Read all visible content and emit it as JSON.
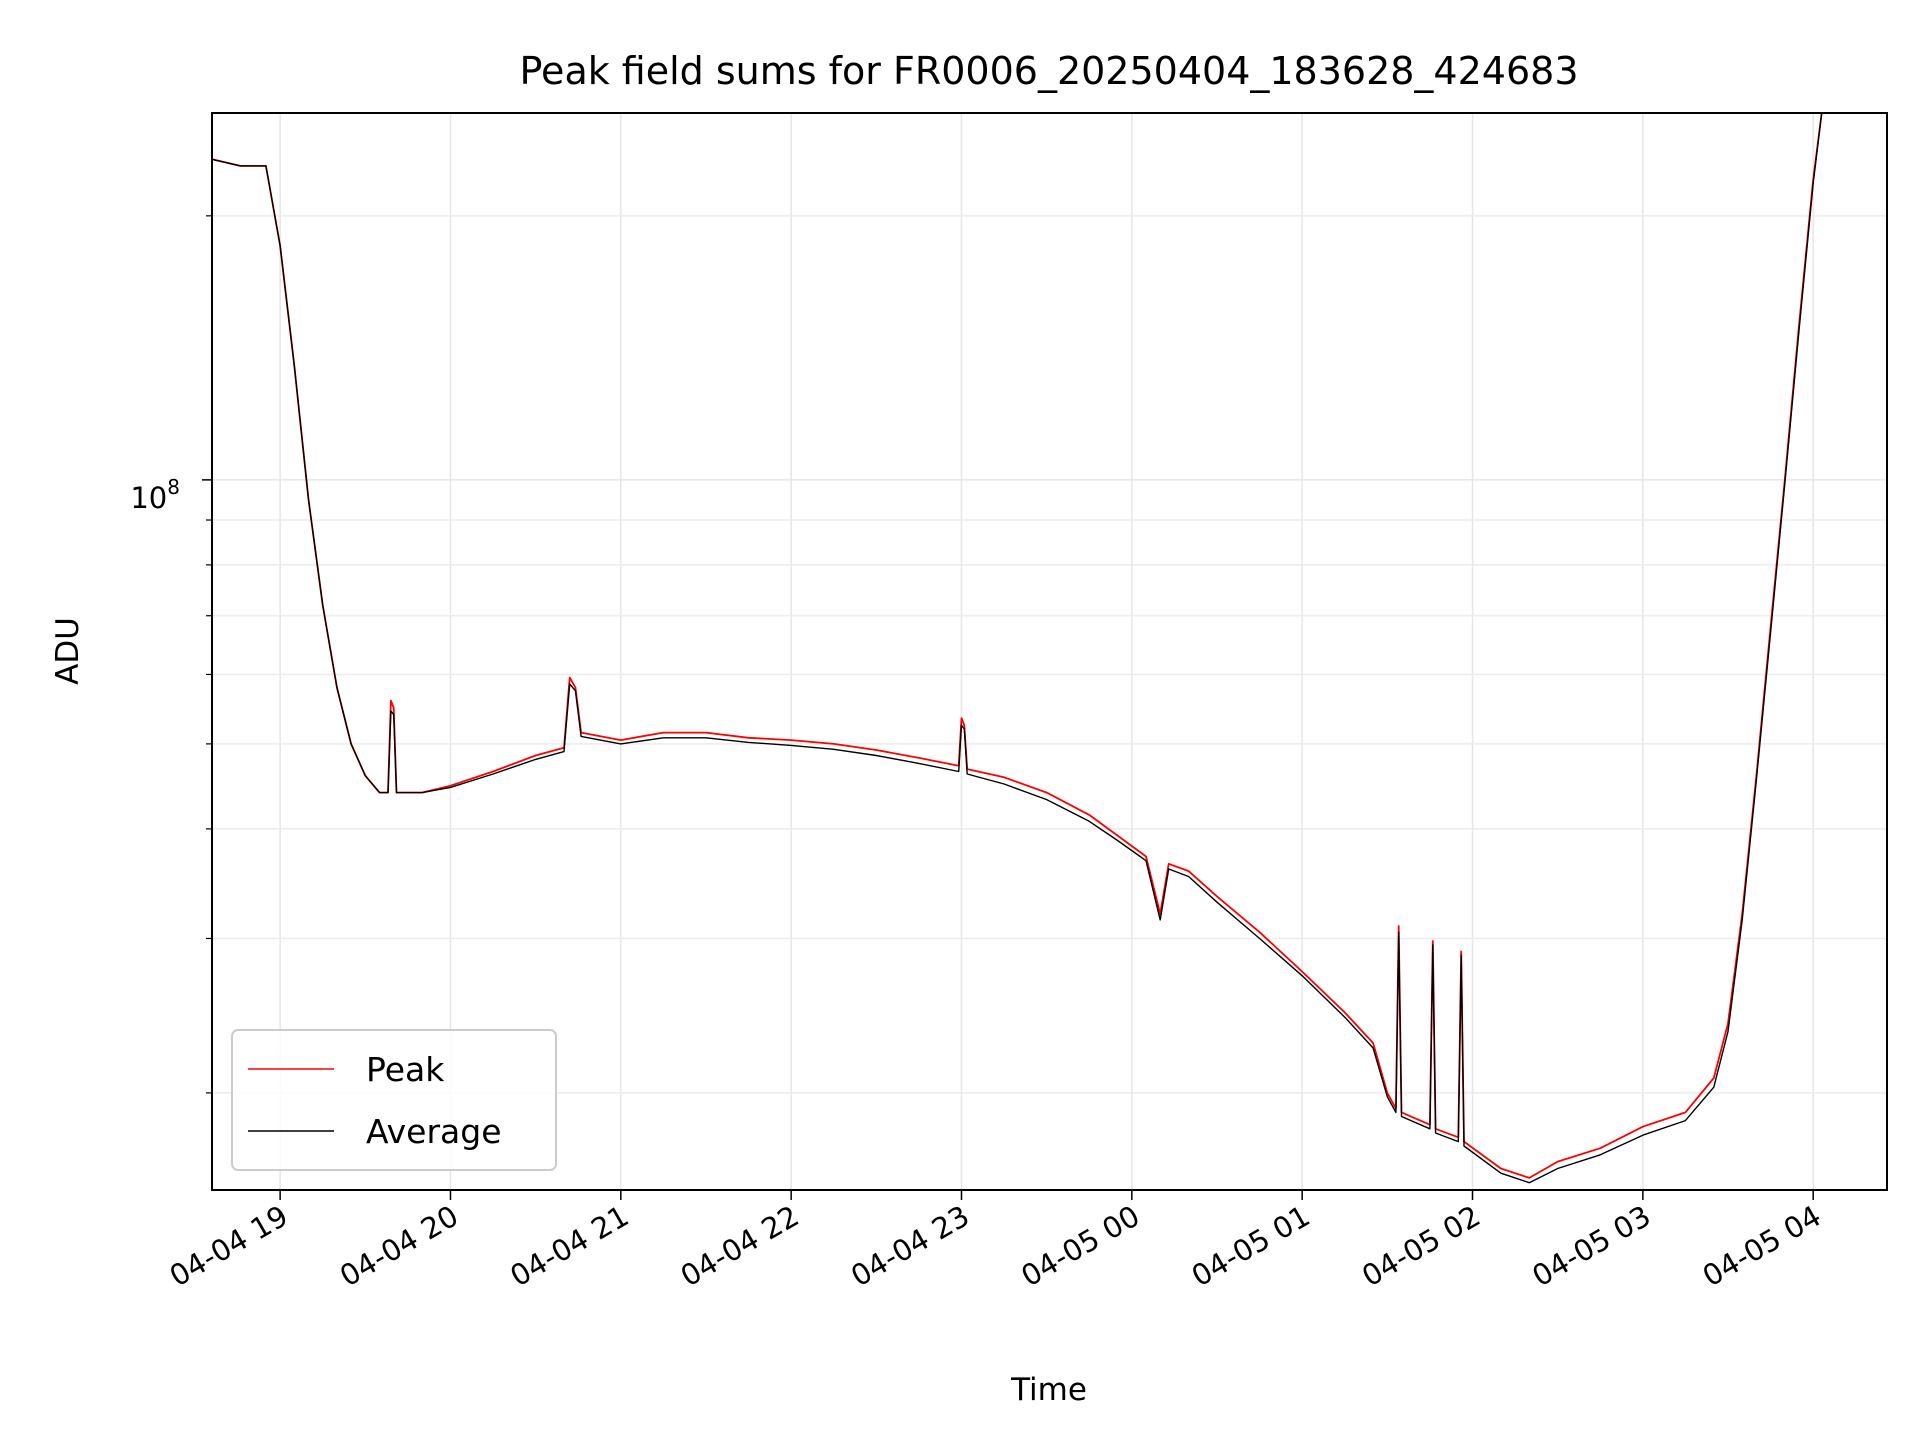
{
  "chart_data": {
    "type": "line",
    "title": "Peak field sums for FR0006_20250404_183628_424683",
    "xlabel": "Time",
    "ylabel": "ADU",
    "yscale": "log",
    "xlim": [
      "2025-04-04 18:36",
      "2025-04-05 04:26"
    ],
    "ylim": [
      15500000,
      262000000
    ],
    "x_ticks": [
      "04-04 19",
      "04-04 20",
      "04-04 21",
      "04-04 22",
      "04-04 23",
      "04-05 00",
      "04-05 01",
      "04-05 02",
      "04-05 03",
      "04-05 04"
    ],
    "y_major_tick_label": {
      "base": "10",
      "exponent": "8"
    },
    "y_major_tick_value": 100000000,
    "y_minor_ticks": [
      20000000,
      30000000,
      40000000,
      50000000,
      60000000,
      70000000,
      80000000,
      90000000,
      200000000
    ],
    "grid": true,
    "legend_position": "lower-left",
    "series": [
      {
        "name": "Peak",
        "color": "#ff0000",
        "points": [
          [
            "2025-04-04 18:36",
            232000000
          ],
          [
            "2025-04-04 18:46",
            228000000
          ],
          [
            "2025-04-04 18:55",
            228000000
          ],
          [
            "2025-04-04 19:00",
            185000000
          ],
          [
            "2025-04-04 19:05",
            135000000
          ],
          [
            "2025-04-04 19:10",
            95000000
          ],
          [
            "2025-04-04 19:15",
            72000000
          ],
          [
            "2025-04-04 19:20",
            58000000
          ],
          [
            "2025-04-04 19:25",
            50000000
          ],
          [
            "2025-04-04 19:30",
            46000000
          ],
          [
            "2025-04-04 19:35",
            44000000
          ],
          [
            "2025-04-04 19:38",
            44000000
          ],
          [
            "2025-04-04 19:39",
            56000000
          ],
          [
            "2025-04-04 19:40",
            55000000
          ],
          [
            "2025-04-04 19:41",
            44000000
          ],
          [
            "2025-04-04 19:50",
            44000000
          ],
          [
            "2025-04-04 20:00",
            44800000
          ],
          [
            "2025-04-04 20:15",
            46500000
          ],
          [
            "2025-04-04 20:30",
            48500000
          ],
          [
            "2025-04-04 20:40",
            49500000
          ],
          [
            "2025-04-04 20:42",
            59500000
          ],
          [
            "2025-04-04 20:44",
            58000000
          ],
          [
            "2025-04-04 20:46",
            51500000
          ],
          [
            "2025-04-04 21:00",
            50500000
          ],
          [
            "2025-04-04 21:15",
            51500000
          ],
          [
            "2025-04-04 21:30",
            51500000
          ],
          [
            "2025-04-04 21:45",
            50800000
          ],
          [
            "2025-04-04 22:00",
            50500000
          ],
          [
            "2025-04-04 22:15",
            50000000
          ],
          [
            "2025-04-04 22:30",
            49200000
          ],
          [
            "2025-04-04 22:45",
            48200000
          ],
          [
            "2025-04-04 22:59",
            47200000
          ],
          [
            "2025-04-04 23:00",
            53500000
          ],
          [
            "2025-04-04 23:01",
            52500000
          ],
          [
            "2025-04-04 23:02",
            46800000
          ],
          [
            "2025-04-04 23:15",
            45800000
          ],
          [
            "2025-04-04 23:30",
            44000000
          ],
          [
            "2025-04-04 23:45",
            41500000
          ],
          [
            "2025-04-04 23:55",
            39300000
          ],
          [
            "2025-04-05 00:05",
            37200000
          ],
          [
            "2025-04-05 00:10",
            32000000
          ],
          [
            "2025-04-05 00:13",
            36500000
          ],
          [
            "2025-04-05 00:20",
            35800000
          ],
          [
            "2025-04-05 00:30",
            33500000
          ],
          [
            "2025-04-05 00:45",
            30500000
          ],
          [
            "2025-04-05 01:00",
            27500000
          ],
          [
            "2025-04-05 01:15",
            24700000
          ],
          [
            "2025-04-05 01:25",
            22800000
          ],
          [
            "2025-04-05 01:30",
            20000000
          ],
          [
            "2025-04-05 01:33",
            19200000
          ],
          [
            "2025-04-05 01:34",
            31000000
          ],
          [
            "2025-04-05 01:35",
            19000000
          ],
          [
            "2025-04-05 01:45",
            18400000
          ],
          [
            "2025-04-05 01:46",
            29800000
          ],
          [
            "2025-04-05 01:47",
            18200000
          ],
          [
            "2025-04-05 01:55",
            17800000
          ],
          [
            "2025-04-05 01:56",
            29000000
          ],
          [
            "2025-04-05 01:57",
            17600000
          ],
          [
            "2025-04-05 02:10",
            16400000
          ],
          [
            "2025-04-05 02:20",
            16000000
          ],
          [
            "2025-04-05 02:30",
            16700000
          ],
          [
            "2025-04-05 02:45",
            17300000
          ],
          [
            "2025-04-05 03:00",
            18300000
          ],
          [
            "2025-04-05 03:15",
            19000000
          ],
          [
            "2025-04-05 03:25",
            20800000
          ],
          [
            "2025-04-05 03:30",
            24000000
          ],
          [
            "2025-04-05 03:35",
            32000000
          ],
          [
            "2025-04-05 03:40",
            46000000
          ],
          [
            "2025-04-05 03:45",
            68000000
          ],
          [
            "2025-04-05 03:50",
            100000000
          ],
          [
            "2025-04-05 03:55",
            150000000
          ],
          [
            "2025-04-05 04:00",
            220000000
          ],
          [
            "2025-04-05 04:03",
            262000000
          ]
        ]
      },
      {
        "name": "Average",
        "color": "#000000",
        "points": [
          [
            "2025-04-04 18:36",
            232000000
          ],
          [
            "2025-04-04 18:46",
            228000000
          ],
          [
            "2025-04-04 18:55",
            228000000
          ],
          [
            "2025-04-04 19:00",
            185000000
          ],
          [
            "2025-04-04 19:05",
            135000000
          ],
          [
            "2025-04-04 19:10",
            95000000
          ],
          [
            "2025-04-04 19:15",
            72000000
          ],
          [
            "2025-04-04 19:20",
            58000000
          ],
          [
            "2025-04-04 19:25",
            50000000
          ],
          [
            "2025-04-04 19:30",
            46000000
          ],
          [
            "2025-04-04 19:35",
            44000000
          ],
          [
            "2025-04-04 19:38",
            44000000
          ],
          [
            "2025-04-04 19:39",
            54500000
          ],
          [
            "2025-04-04 19:40",
            54000000
          ],
          [
            "2025-04-04 19:41",
            44000000
          ],
          [
            "2025-04-04 19:50",
            44000000
          ],
          [
            "2025-04-04 20:00",
            44600000
          ],
          [
            "2025-04-04 20:15",
            46200000
          ],
          [
            "2025-04-04 20:30",
            48000000
          ],
          [
            "2025-04-04 20:40",
            49000000
          ],
          [
            "2025-04-04 20:42",
            58500000
          ],
          [
            "2025-04-04 20:44",
            57500000
          ],
          [
            "2025-04-04 20:46",
            51000000
          ],
          [
            "2025-04-04 21:00",
            50000000
          ],
          [
            "2025-04-04 21:15",
            50800000
          ],
          [
            "2025-04-04 21:30",
            50800000
          ],
          [
            "2025-04-04 21:45",
            50200000
          ],
          [
            "2025-04-04 22:00",
            49800000
          ],
          [
            "2025-04-04 22:15",
            49300000
          ],
          [
            "2025-04-04 22:30",
            48500000
          ],
          [
            "2025-04-04 22:45",
            47500000
          ],
          [
            "2025-04-04 22:59",
            46500000
          ],
          [
            "2025-04-04 23:00",
            52500000
          ],
          [
            "2025-04-04 23:01",
            52000000
          ],
          [
            "2025-04-04 23:02",
            46200000
          ],
          [
            "2025-04-04 23:15",
            45000000
          ],
          [
            "2025-04-04 23:30",
            43200000
          ],
          [
            "2025-04-04 23:45",
            40800000
          ],
          [
            "2025-04-04 23:55",
            38800000
          ],
          [
            "2025-04-05 00:05",
            36800000
          ],
          [
            "2025-04-05 00:10",
            31500000
          ],
          [
            "2025-04-05 00:13",
            36000000
          ],
          [
            "2025-04-05 00:20",
            35300000
          ],
          [
            "2025-04-05 00:30",
            33000000
          ],
          [
            "2025-04-05 00:45",
            30000000
          ],
          [
            "2025-04-05 01:00",
            27200000
          ],
          [
            "2025-04-05 01:15",
            24400000
          ],
          [
            "2025-04-05 01:25",
            22500000
          ],
          [
            "2025-04-05 01:30",
            19800000
          ],
          [
            "2025-04-05 01:33",
            19000000
          ],
          [
            "2025-04-05 01:34",
            30500000
          ],
          [
            "2025-04-05 01:35",
            18800000
          ],
          [
            "2025-04-05 01:45",
            18200000
          ],
          [
            "2025-04-05 01:46",
            29500000
          ],
          [
            "2025-04-05 01:47",
            18000000
          ],
          [
            "2025-04-05 01:55",
            17600000
          ],
          [
            "2025-04-05 01:56",
            28700000
          ],
          [
            "2025-04-05 01:57",
            17400000
          ],
          [
            "2025-04-05 02:10",
            16200000
          ],
          [
            "2025-04-05 02:20",
            15800000
          ],
          [
            "2025-04-05 02:30",
            16400000
          ],
          [
            "2025-04-05 02:45",
            17000000
          ],
          [
            "2025-04-05 03:00",
            17900000
          ],
          [
            "2025-04-05 03:15",
            18600000
          ],
          [
            "2025-04-05 03:25",
            20300000
          ],
          [
            "2025-04-05 03:30",
            23500000
          ],
          [
            "2025-04-05 03:35",
            31500000
          ],
          [
            "2025-04-05 03:40",
            45500000
          ],
          [
            "2025-04-05 03:45",
            67000000
          ],
          [
            "2025-04-05 03:50",
            99000000
          ],
          [
            "2025-04-05 03:55",
            148000000
          ],
          [
            "2025-04-05 04:00",
            218000000
          ],
          [
            "2025-04-05 04:03",
            262000000
          ]
        ]
      }
    ]
  }
}
